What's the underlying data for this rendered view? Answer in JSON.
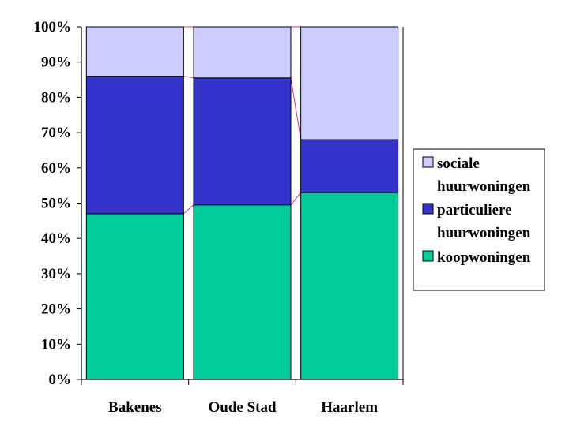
{
  "chart_data": {
    "type": "bar",
    "stacked": true,
    "percent": true,
    "categories": [
      "Bakenes",
      "Oude Stad",
      "Haarlem"
    ],
    "series": [
      {
        "name": "koopwoningen",
        "values": [
          47,
          49.5,
          53
        ],
        "color": "#00cc99"
      },
      {
        "name": "particuliere huurwoningen",
        "values": [
          39,
          36,
          15
        ],
        "color": "#3333cc"
      },
      {
        "name": "sociale huurwoningen",
        "values": [
          14,
          14.5,
          32
        ],
        "color": "#ccccff"
      }
    ],
    "legend_order": [
      2,
      1,
      0
    ],
    "legend_lines": [
      [
        "sociale",
        "huurwoningen"
      ],
      [
        "particuliere",
        "huurwoningen"
      ],
      [
        "koopwoningen"
      ]
    ],
    "yticks": [
      "0%",
      "10%",
      "20%",
      "30%",
      "40%",
      "50%",
      "60%",
      "70%",
      "80%",
      "90%",
      "100%"
    ],
    "ylim": [
      0,
      100
    ],
    "series_lines": true,
    "series_line_color": "#cc3399",
    "legend_position": "right",
    "grid": false
  }
}
